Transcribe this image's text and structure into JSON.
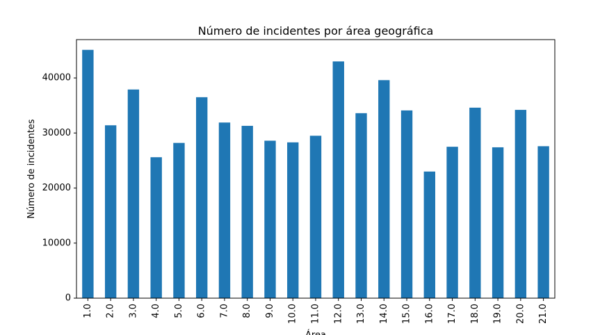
{
  "chart_data": {
    "type": "bar",
    "title": "Número de incidentes por área geográfica",
    "xlabel": "Área",
    "ylabel": "Número de incidentes",
    "categories": [
      "1.0",
      "2.0",
      "3.0",
      "4.0",
      "5.0",
      "6.0",
      "7.0",
      "8.0",
      "9.0",
      "10.0",
      "11.0",
      "12.0",
      "13.0",
      "14.0",
      "15.0",
      "16.0",
      "17.0",
      "18.0",
      "19.0",
      "20.0",
      "21.0"
    ],
    "values": [
      45100,
      31400,
      37900,
      25600,
      28200,
      36500,
      31900,
      31300,
      28600,
      28300,
      29500,
      43000,
      33600,
      39600,
      34100,
      23000,
      27500,
      34600,
      27400,
      34200,
      27600
    ],
    "ylim": [
      0,
      46960
    ],
    "yticks": [
      0,
      10000,
      20000,
      30000,
      40000
    ],
    "ytick_labels": [
      "0",
      "10000",
      "20000",
      "30000",
      "40000"
    ],
    "grid": false,
    "bar_color": "#1f77b4"
  }
}
